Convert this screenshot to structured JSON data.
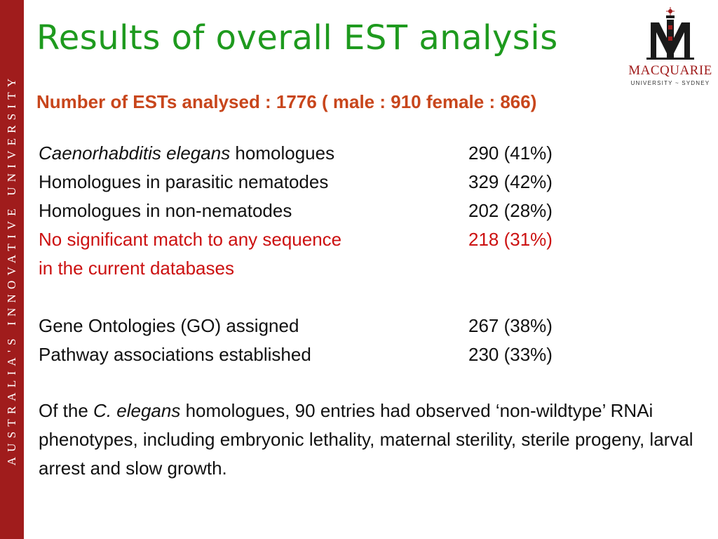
{
  "sidebar": {
    "text": "AUSTRALIA'S INNOVATIVE UNIVERSITY"
  },
  "title": "Results of overall EST analysis",
  "logo": {
    "name": "MACQUARIE",
    "sub": "UNIVERSITY ~ SYDNEY"
  },
  "subtitle": "Number of ESTs analysed  : 1776 ( male : 910  female : 866)",
  "rows": [
    {
      "italic": "Caenorhabditis elegans",
      "label": " homologues",
      "value": "290 (41%)"
    },
    {
      "italic": "",
      "label": "Homologues in parasitic nematodes",
      "value": "329 (42%)"
    },
    {
      "italic": "",
      "label": "Homologues in non-nematodes",
      "value": "202 (28%)"
    },
    {
      "italic": "",
      "label": "No significant match to any sequence",
      "value": "218 (31%)"
    },
    {
      "italic": "",
      "label": "in the current databases",
      "value": ""
    },
    {
      "italic": "",
      "label": "Gene Ontologies (GO) assigned",
      "value": "267 (38%)"
    },
    {
      "italic": "",
      "label": "Pathway associations established",
      "value": "230 (33%)"
    }
  ],
  "paragraph": {
    "prefix": "Of the ",
    "italic": "C. elegans",
    "rest": " homologues, 90 entries had observed ‘non-wildtype’ RNAi phenotypes, including embryonic lethality, maternal sterility, sterile progeny, larval arrest and slow growth."
  },
  "colors": {
    "title": "#1e9a1e",
    "subtitle": "#c8461c",
    "highlight": "#cc1111",
    "sidebar": "#a01c1c"
  }
}
